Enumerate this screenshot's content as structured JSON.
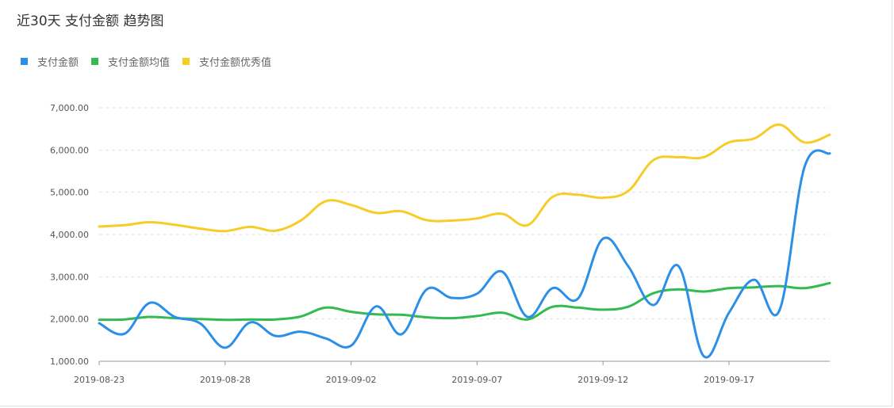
{
  "title": "近30天 支付金额 趋势图",
  "chart_data": {
    "type": "line",
    "title": "近30天 支付金额 趋势图",
    "xlabel": "",
    "ylabel": "",
    "ylim": [
      1000,
      7000
    ],
    "yticks": [
      1000,
      2000,
      3000,
      4000,
      5000,
      6000,
      7000
    ],
    "ytick_labels": [
      "1,000.00",
      "2,000.00",
      "3,000.00",
      "4,000.00",
      "5,000.00",
      "6,000.00",
      "7,000.00"
    ],
    "x": [
      "2019-08-23",
      "2019-08-24",
      "2019-08-25",
      "2019-08-26",
      "2019-08-27",
      "2019-08-28",
      "2019-08-29",
      "2019-08-30",
      "2019-08-31",
      "2019-09-01",
      "2019-09-02",
      "2019-09-03",
      "2019-09-04",
      "2019-09-05",
      "2019-09-06",
      "2019-09-07",
      "2019-09-08",
      "2019-09-09",
      "2019-09-10",
      "2019-09-11",
      "2019-09-12",
      "2019-09-13",
      "2019-09-14",
      "2019-09-15",
      "2019-09-16",
      "2019-09-17",
      "2019-09-18",
      "2019-09-19",
      "2019-09-20",
      "2019-09-21"
    ],
    "xtick_labels": [
      "2019-08-23",
      "2019-08-28",
      "2019-09-02",
      "2019-09-07",
      "2019-09-12",
      "2019-09-17"
    ],
    "grid": true,
    "legend_position": "top-left",
    "series": [
      {
        "name": "支付金额",
        "color": "#2b8fe8",
        "values": [
          1900,
          1650,
          2380,
          2050,
          1900,
          1320,
          1920,
          1600,
          1700,
          1540,
          1370,
          2300,
          1640,
          2700,
          2500,
          2600,
          3120,
          2050,
          2730,
          2480,
          3900,
          3250,
          2330,
          3250,
          1120,
          2150,
          2930,
          2200,
          5600,
          5920
        ]
      },
      {
        "name": "支付金额均值",
        "color": "#32bb50",
        "values": [
          1980,
          1990,
          2050,
          2020,
          2000,
          1980,
          1990,
          1990,
          2060,
          2270,
          2170,
          2110,
          2100,
          2040,
          2020,
          2070,
          2150,
          1990,
          2290,
          2270,
          2220,
          2290,
          2610,
          2700,
          2650,
          2730,
          2750,
          2780,
          2730,
          2850
        ]
      },
      {
        "name": "支付金额优秀值",
        "color": "#f6cc26",
        "values": [
          4190,
          4220,
          4290,
          4230,
          4140,
          4080,
          4180,
          4090,
          4330,
          4790,
          4700,
          4510,
          4550,
          4340,
          4330,
          4380,
          4490,
          4220,
          4890,
          4940,
          4870,
          5030,
          5760,
          5830,
          5830,
          6180,
          6270,
          6600,
          6180,
          6360
        ]
      }
    ]
  }
}
